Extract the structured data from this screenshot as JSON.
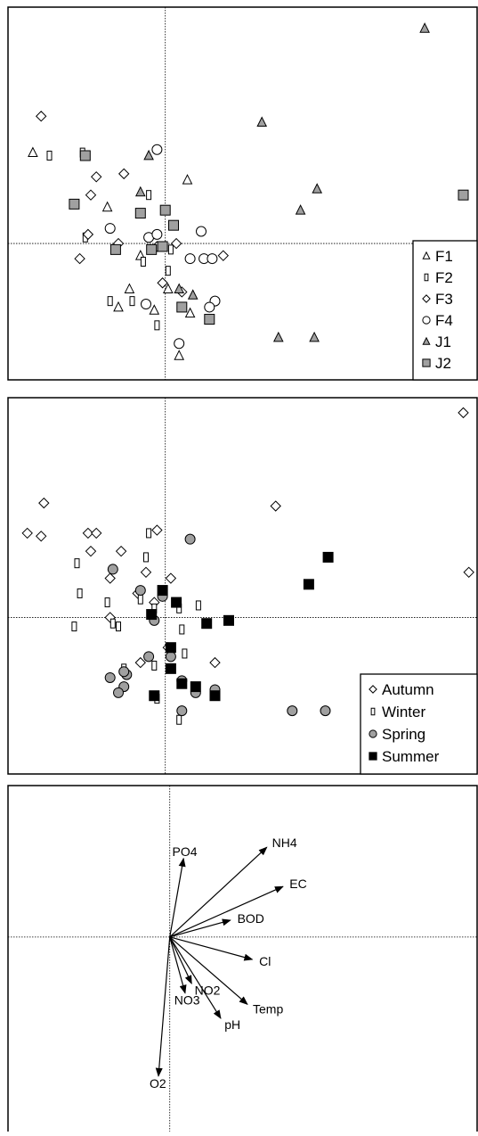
{
  "colors": {
    "frame": "#000000",
    "axis": "#000000",
    "grey_fill": "#a0a0a0",
    "black_fill": "#000000",
    "white_fill": "#ffffff"
  },
  "chart_data": [
    {
      "type": "scatter",
      "panel": "sites",
      "title": "",
      "xlabel": "",
      "ylabel": "",
      "xlim": [
        -5.7,
        11.3
      ],
      "ylim": [
        -4.5,
        7.8
      ],
      "grid": false,
      "legend_placement": "bottom-right",
      "series": [
        {
          "name": "F1",
          "marker": "triangle-open",
          "points": [
            [
              -4.8,
              3.0
            ],
            [
              -2.1,
              1.2
            ],
            [
              0.8,
              2.1
            ],
            [
              -0.9,
              -0.4
            ],
            [
              -1.3,
              -1.5
            ],
            [
              -1.7,
              -2.1
            ],
            [
              -0.4,
              -2.2
            ],
            [
              0.1,
              -1.5
            ],
            [
              0.9,
              -2.3
            ],
            [
              0.5,
              -3.7
            ],
            [
              -1.8,
              -0.1
            ]
          ]
        },
        {
          "name": "F2",
          "marker": "rect-open",
          "points": [
            [
              -4.2,
              2.9
            ],
            [
              -3.0,
              3.0
            ],
            [
              -0.6,
              1.6
            ],
            [
              -2.9,
              0.2
            ],
            [
              -0.8,
              -0.6
            ],
            [
              0.1,
              -0.9
            ],
            [
              -1.2,
              -1.9
            ],
            [
              -0.3,
              -2.7
            ],
            [
              -2.0,
              -1.9
            ],
            [
              0.2,
              -0.2
            ]
          ]
        },
        {
          "name": "F3",
          "marker": "diamond-open",
          "points": [
            [
              -4.5,
              4.2
            ],
            [
              -2.5,
              2.2
            ],
            [
              -1.5,
              2.3
            ],
            [
              -2.7,
              1.6
            ],
            [
              -1.7,
              0.0
            ],
            [
              -3.1,
              -0.5
            ],
            [
              -2.8,
              0.3
            ],
            [
              0.4,
              0.0
            ],
            [
              -0.1,
              -1.3
            ],
            [
              0.6,
              -1.6
            ],
            [
              2.1,
              -0.4
            ],
            [
              -0.3,
              -0.1
            ]
          ]
        },
        {
          "name": "F4",
          "marker": "circle-open",
          "points": [
            [
              -0.3,
              3.1
            ],
            [
              -2.0,
              0.5
            ],
            [
              -0.6,
              0.2
            ],
            [
              -0.3,
              0.3
            ],
            [
              0.9,
              -0.5
            ],
            [
              1.3,
              0.4
            ],
            [
              1.4,
              -0.5
            ],
            [
              1.7,
              -0.5
            ],
            [
              1.8,
              -1.9
            ],
            [
              -0.7,
              -2.0
            ],
            [
              0.5,
              -3.3
            ],
            [
              1.6,
              -2.1
            ]
          ]
        },
        {
          "name": "J1",
          "marker": "triangle-grey",
          "points": [
            [
              9.4,
              7.1
            ],
            [
              3.5,
              4.0
            ],
            [
              5.5,
              1.8
            ],
            [
              4.9,
              1.1
            ],
            [
              -0.6,
              2.9
            ],
            [
              -0.9,
              1.7
            ],
            [
              0.5,
              -1.5
            ],
            [
              1.0,
              -1.7
            ],
            [
              4.1,
              -3.1
            ],
            [
              5.4,
              -3.1
            ]
          ]
        },
        {
          "name": "J2",
          "marker": "square-grey",
          "points": [
            [
              10.8,
              1.6
            ],
            [
              -2.9,
              2.9
            ],
            [
              -3.3,
              1.3
            ],
            [
              -0.9,
              1.0
            ],
            [
              0.0,
              1.1
            ],
            [
              0.3,
              0.6
            ],
            [
              -0.1,
              -0.1
            ],
            [
              -0.5,
              -0.2
            ],
            [
              -1.8,
              -0.2
            ],
            [
              0.6,
              -2.1
            ],
            [
              1.6,
              -2.5
            ]
          ]
        }
      ]
    },
    {
      "type": "scatter",
      "panel": "seasons",
      "title": "",
      "xlabel": "",
      "ylabel": "",
      "xlim": [
        -5.7,
        11.3
      ],
      "ylim": [
        -5.2,
        7.3
      ],
      "grid": false,
      "legend_placement": "bottom-right",
      "series": [
        {
          "name": "Autumn",
          "marker": "diamond-open",
          "points": [
            [
              10.8,
              6.8
            ],
            [
              -4.4,
              3.8
            ],
            [
              4.0,
              3.7
            ],
            [
              -5.0,
              2.8
            ],
            [
              -4.5,
              2.7
            ],
            [
              -2.8,
              2.8
            ],
            [
              -2.5,
              2.8
            ],
            [
              -0.3,
              2.9
            ],
            [
              -2.7,
              2.2
            ],
            [
              -1.6,
              2.2
            ],
            [
              -2.0,
              1.3
            ],
            [
              -0.7,
              1.5
            ],
            [
              -1.0,
              0.8
            ],
            [
              0.2,
              1.3
            ],
            [
              -0.4,
              0.5
            ],
            [
              0.1,
              -1.0
            ],
            [
              -0.9,
              -1.5
            ],
            [
              1.8,
              -1.5
            ],
            [
              11.0,
              1.5
            ],
            [
              -2.0,
              0.0
            ]
          ]
        },
        {
          "name": "Winter",
          "marker": "rect-open",
          "points": [
            [
              -0.6,
              2.8
            ],
            [
              -3.2,
              1.8
            ],
            [
              -0.7,
              2.0
            ],
            [
              -3.1,
              0.8
            ],
            [
              -2.1,
              0.5
            ],
            [
              -0.9,
              0.6
            ],
            [
              -0.4,
              0.3
            ],
            [
              0.5,
              0.3
            ],
            [
              1.2,
              0.4
            ],
            [
              0.6,
              -0.4
            ],
            [
              -3.3,
              -0.3
            ],
            [
              -1.9,
              -0.2
            ],
            [
              -1.7,
              -0.3
            ],
            [
              -1.5,
              -1.7
            ],
            [
              -0.4,
              -1.6
            ],
            [
              0.7,
              -1.2
            ],
            [
              -0.3,
              -2.7
            ],
            [
              0.5,
              -3.4
            ]
          ]
        },
        {
          "name": "Spring",
          "marker": "circle-grey",
          "points": [
            [
              0.9,
              2.6
            ],
            [
              -1.9,
              1.6
            ],
            [
              -0.9,
              0.9
            ],
            [
              -0.1,
              0.7
            ],
            [
              -0.4,
              -0.1
            ],
            [
              0.2,
              -1.3
            ],
            [
              -0.6,
              -1.3
            ],
            [
              -1.4,
              -1.9
            ],
            [
              -2.0,
              -2.0
            ],
            [
              -1.5,
              -1.8
            ],
            [
              -1.5,
              -2.3
            ],
            [
              -1.7,
              -2.5
            ],
            [
              0.6,
              -2.1
            ],
            [
              1.1,
              -2.5
            ],
            [
              1.8,
              -2.4
            ],
            [
              0.6,
              -3.1
            ],
            [
              4.6,
              -3.1
            ],
            [
              5.8,
              -3.1
            ]
          ]
        },
        {
          "name": "Summer",
          "marker": "square-black",
          "points": [
            [
              5.9,
              2.0
            ],
            [
              5.2,
              1.1
            ],
            [
              -0.1,
              0.9
            ],
            [
              0.4,
              0.5
            ],
            [
              -0.5,
              0.1
            ],
            [
              1.5,
              -0.2
            ],
            [
              2.3,
              -0.1
            ],
            [
              0.2,
              -1.0
            ],
            [
              0.2,
              -1.7
            ],
            [
              0.6,
              -2.2
            ],
            [
              1.1,
              -2.3
            ],
            [
              -0.4,
              -2.6
            ],
            [
              1.8,
              -2.6
            ]
          ]
        }
      ]
    },
    {
      "type": "biplot",
      "panel": "variables",
      "title": "",
      "xlabel": "",
      "ylabel": "",
      "xlim": [
        -2.0,
        3.8
      ],
      "ylim": [
        -3.5,
        2.7
      ],
      "grid": false,
      "vectors": [
        {
          "label": "NH4",
          "x": 1.2,
          "y": 1.6
        },
        {
          "label": "EC",
          "x": 1.4,
          "y": 0.9
        },
        {
          "label": "PO4",
          "x": 0.17,
          "y": 1.4
        },
        {
          "label": "BOD",
          "x": 0.75,
          "y": 0.3
        },
        {
          "label": "Cl",
          "x": 1.02,
          "y": -0.4
        },
        {
          "label": "Temp",
          "x": 0.96,
          "y": -1.2
        },
        {
          "label": "pH",
          "x": 0.63,
          "y": -1.45
        },
        {
          "label": "NO2",
          "x": 0.27,
          "y": -0.83
        },
        {
          "label": "NO3",
          "x": 0.19,
          "y": -1.0
        },
        {
          "label": "O2",
          "x": -0.14,
          "y": -2.48
        }
      ]
    }
  ]
}
